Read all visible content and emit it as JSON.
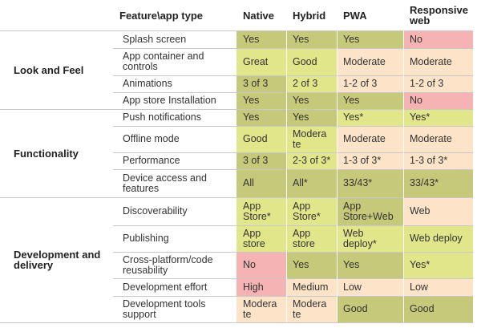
{
  "header": [
    "Feature\\app type",
    "Native",
    "Hybrid",
    "PWA",
    "Responsive\nweb"
  ],
  "groups": [
    {
      "label": "Look and Feel"
    },
    {
      "label": "Functionality"
    },
    {
      "label": "Development and\ndelivery"
    }
  ],
  "rows": [
    {
      "feature": "Splash screen",
      "cells": [
        "Yes",
        "Yes",
        "Yes",
        "No"
      ]
    },
    {
      "feature": "App container and\ncontrols",
      "cells": [
        "Great",
        "Good",
        "Moderate",
        "Moderate"
      ]
    },
    {
      "feature": "Animations",
      "cells": [
        "3 of 3",
        "2 of 3",
        "1-2 of 3",
        "1-2 of 3"
      ]
    },
    {
      "feature": "App store Installation",
      "cells": [
        "Yes",
        "Yes",
        "Yes",
        "No"
      ]
    },
    {
      "feature": "Push notifications",
      "cells": [
        "Yes",
        "Yes",
        "Yes*",
        "Yes*"
      ]
    },
    {
      "feature": "Offline mode",
      "cells": [
        "Good",
        "Modera\nte",
        "Moderate",
        "Moderate"
      ]
    },
    {
      "feature": "Performance",
      "cells": [
        "3 of 3",
        "2-3 of 3*",
        "1-3 of 3*",
        "1-3 of 3*"
      ]
    },
    {
      "feature": "Device access and\nfeatures",
      "cells": [
        "All",
        "All*",
        "33/43*",
        "33/43*"
      ]
    },
    {
      "feature": "Discoverability",
      "cells": [
        "App\nStore*",
        "App\nStore*",
        "App\nStore+Web",
        "Web"
      ]
    },
    {
      "feature": "Publishing",
      "cells": [
        "App\nstore",
        "App\nstore",
        "Web\ndeploy*",
        "Web deploy"
      ]
    },
    {
      "feature": "Cross-platform/code\nreusability",
      "cells": [
        "No",
        "Yes",
        "Yes",
        "Yes*"
      ]
    },
    {
      "feature": "Development effort",
      "cells": [
        "High",
        "Medium",
        "Low",
        "Low"
      ]
    },
    {
      "feature": "Development tools\nsupport",
      "cells": [
        "Modera\nte",
        "Modera\nte",
        "Good",
        "Good"
      ]
    }
  ],
  "colors": {
    "dark_green": "#c7c97a",
    "light_green": "#e2e68a",
    "peach": "#fde4c8",
    "pink": "#f5b3b3"
  },
  "cell_colors": [
    [
      "dark_green",
      "dark_green",
      "dark_green",
      "pink"
    ],
    [
      "light_green",
      "light_green",
      "peach",
      "peach"
    ],
    [
      "dark_green",
      "light_green",
      "peach",
      "peach"
    ],
    [
      "dark_green",
      "dark_green",
      "dark_green",
      "pink"
    ],
    [
      "dark_green",
      "dark_green",
      "light_green",
      "light_green"
    ],
    [
      "light_green",
      "light_green",
      "peach",
      "peach"
    ],
    [
      "dark_green",
      "light_green",
      "peach",
      "peach"
    ],
    [
      "dark_green",
      "dark_green",
      "dark_green",
      "dark_green"
    ],
    [
      "light_green",
      "light_green",
      "dark_green",
      "peach"
    ],
    [
      "light_green",
      "light_green",
      "light_green",
      "light_green"
    ],
    [
      "pink",
      "dark_green",
      "dark_green",
      "light_green"
    ],
    [
      "pink",
      "peach",
      "peach",
      "peach"
    ],
    [
      "peach",
      "peach",
      "dark_green",
      "dark_green"
    ]
  ]
}
